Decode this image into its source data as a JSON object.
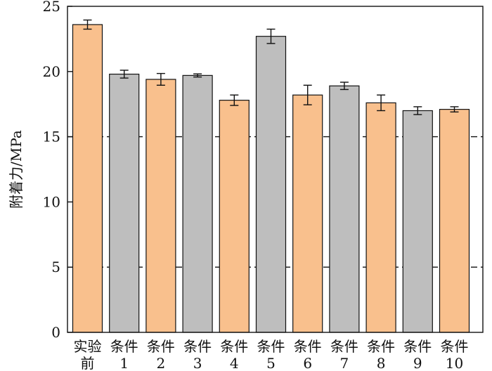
{
  "chart_data": {
    "type": "bar",
    "categories": [
      [
        "实验",
        "前"
      ],
      [
        "条件",
        "1"
      ],
      [
        "条件",
        "2"
      ],
      [
        "条件",
        "3"
      ],
      [
        "条件",
        "4"
      ],
      [
        "条件",
        "5"
      ],
      [
        "条件",
        "6"
      ],
      [
        "条件",
        "7"
      ],
      [
        "条件",
        "8"
      ],
      [
        "条件",
        "9"
      ],
      [
        "条件",
        "10"
      ]
    ],
    "values": [
      23.6,
      19.8,
      19.4,
      19.7,
      17.8,
      22.7,
      18.2,
      18.9,
      17.6,
      17.0,
      17.1
    ],
    "errors": [
      0.35,
      0.3,
      0.45,
      0.12,
      0.4,
      0.55,
      0.75,
      0.28,
      0.6,
      0.3,
      0.2
    ],
    "bar_colors": [
      "#F9C08D",
      "#BEBEBE",
      "#F9C08D",
      "#BEBEBE",
      "#F9C08D",
      "#BEBEBE",
      "#F9C08D",
      "#BEBEBE",
      "#F9C08D",
      "#BEBEBE",
      "#F9C08D"
    ],
    "ylabel": "附着力/MPa",
    "ylim": [
      0,
      25
    ],
    "yticks": [
      0,
      5,
      10,
      15,
      20,
      25
    ],
    "reference_lines": [
      5,
      15
    ],
    "grid": false
  }
}
